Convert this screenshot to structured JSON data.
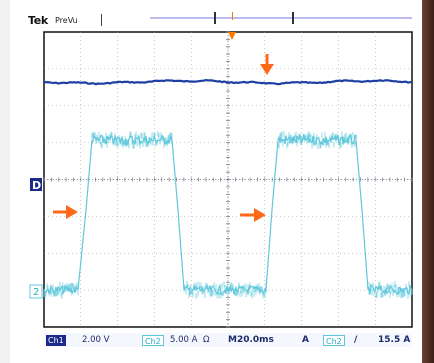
{
  "header": {
    "brand": "Tek",
    "mode": "PreVu"
  },
  "markers": {
    "ch1": "D",
    "ch2": "2"
  },
  "footer": {
    "ch1_label": "Ch1",
    "ch1_scale": "2.00 V",
    "ch2_label": "Ch2",
    "ch2_scale": "5.00 A",
    "ch2_unit_note": "Ω",
    "timebase": "M20.0ms",
    "trigger_mode": "A",
    "trigger_source": "Ch2",
    "trigger_slope": "∕",
    "trigger_level": "15.5 A"
  },
  "colors": {
    "ch1": "#1d3fa3",
    "ch2": "#5fc9dc",
    "arrow": "#ff6a1a",
    "grid": "#9aa0aa",
    "screen_border": "#111111"
  },
  "icons": {
    "trigger_position": "triangle-down-icon",
    "annotation": "arrow-icon"
  }
}
